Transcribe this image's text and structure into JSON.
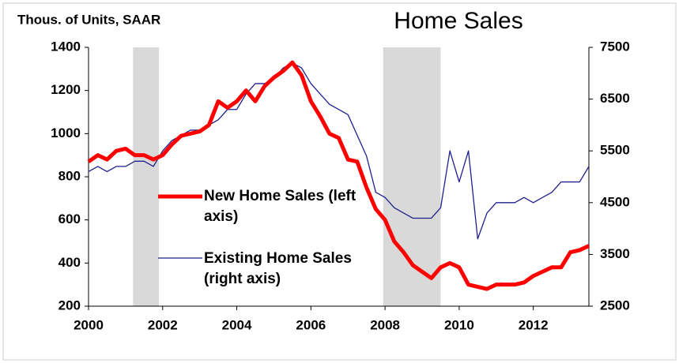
{
  "chart_data": {
    "type": "line",
    "title": "Home Sales",
    "y_label": "Thous. of Units, SAAR",
    "x": [
      2000,
      2000.25,
      2000.5,
      2000.75,
      2001,
      2001.25,
      2001.5,
      2001.75,
      2002,
      2002.25,
      2002.5,
      2002.75,
      2003,
      2003.25,
      2003.5,
      2003.75,
      2004,
      2004.25,
      2004.5,
      2004.75,
      2005,
      2005.25,
      2005.5,
      2005.75,
      2006,
      2006.25,
      2006.5,
      2006.75,
      2007,
      2007.25,
      2007.5,
      2007.75,
      2008,
      2008.25,
      2008.5,
      2008.75,
      2009,
      2009.25,
      2009.5,
      2009.75,
      2010,
      2010.25,
      2010.5,
      2010.75,
      2011,
      2011.25,
      2011.5,
      2011.75,
      2012,
      2012.25,
      2012.5,
      2012.75,
      2013,
      2013.25,
      2013.5
    ],
    "series": [
      {
        "name": "New Home Sales (left axis)",
        "color": "#ff0000",
        "axis": "y",
        "values": [
          870,
          900,
          880,
          920,
          930,
          900,
          900,
          880,
          900,
          950,
          990,
          1000,
          1010,
          1040,
          1150,
          1120,
          1150,
          1200,
          1150,
          1220,
          1260,
          1290,
          1330,
          1270,
          1150,
          1080,
          1000,
          980,
          880,
          870,
          750,
          650,
          600,
          500,
          450,
          390,
          360,
          330,
          380,
          400,
          380,
          300,
          290,
          280,
          300,
          300,
          300,
          310,
          340,
          360,
          380,
          380,
          450,
          460,
          480
        ]
      },
      {
        "name": "Existing Home Sales (right axis)",
        "color": "#1f1f8f",
        "axis": "y2",
        "values": [
          5100,
          5200,
          5100,
          5200,
          5200,
          5300,
          5300,
          5200,
          5500,
          5700,
          5800,
          5900,
          5900,
          6000,
          6100,
          6300,
          6300,
          6600,
          6800,
          6800,
          6900,
          7100,
          7200,
          7100,
          6800,
          6600,
          6400,
          6300,
          6200,
          5800,
          5400,
          4700,
          4600,
          4400,
          4300,
          4200,
          4200,
          4200,
          4400,
          5500,
          4900,
          5500,
          3800,
          4300,
          4500,
          4500,
          4500,
          4600,
          4500,
          4600,
          4700,
          4900,
          4900,
          4900,
          5200
        ]
      }
    ],
    "shaded_regions": [
      [
        2001.2,
        2001.9
      ],
      [
        2007.95,
        2009.5
      ]
    ],
    "xlim": [
      2000,
      2013.5
    ],
    "xticks": [
      2000,
      2002,
      2004,
      2006,
      2008,
      2010,
      2012
    ],
    "ylim": [
      200,
      1400
    ],
    "yticks": [
      200,
      400,
      600,
      800,
      1000,
      1200,
      1400
    ],
    "y2lim": [
      2500,
      7500
    ],
    "y2ticks": [
      2500,
      3500,
      4500,
      5500,
      6500,
      7500
    ],
    "grid": false
  }
}
